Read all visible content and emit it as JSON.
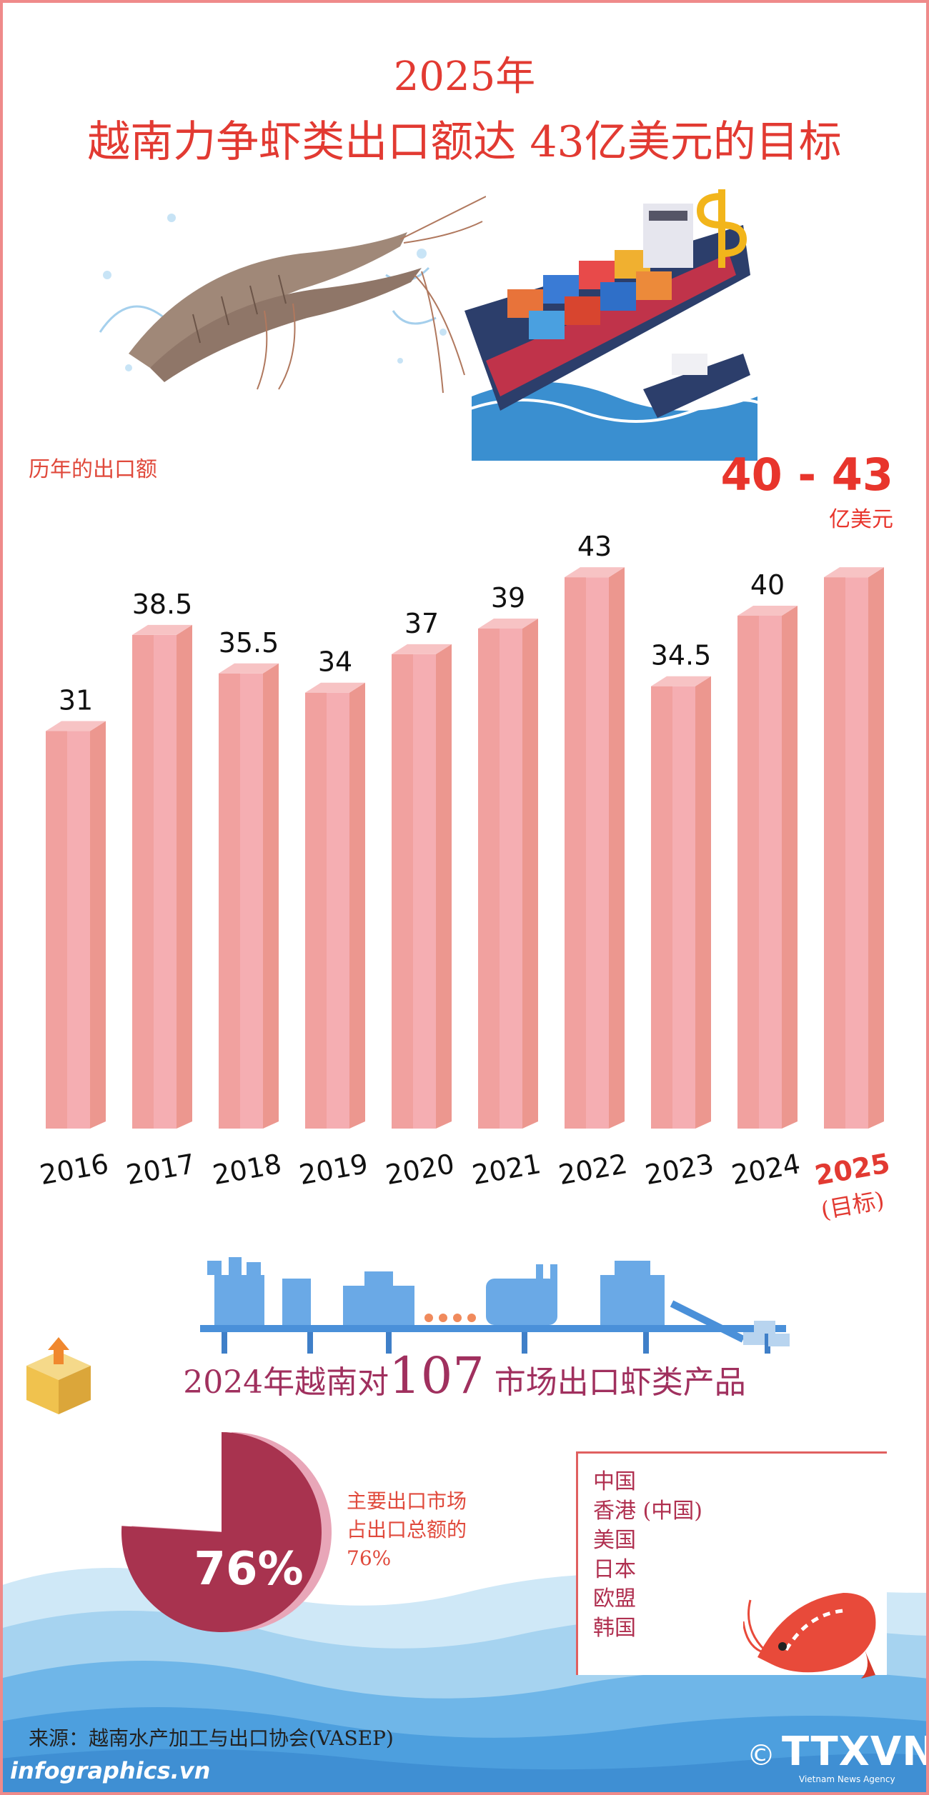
{
  "title": {
    "year": "2025年",
    "main": "越南力争虾类出口额达 43亿美元的目标"
  },
  "history_label": "历年的出口额",
  "target": {
    "range": "40 - 43",
    "unit": "亿美元"
  },
  "chart_data": {
    "type": "bar",
    "categories": [
      "2016",
      "2017",
      "2018",
      "2019",
      "2020",
      "2021",
      "2022",
      "2023",
      "2024",
      "2025"
    ],
    "category_sublabels": [
      "",
      "",
      "",
      "",
      "",
      "",
      "",
      "",
      "",
      "(目标)"
    ],
    "values": [
      31,
      38.5,
      35.5,
      34,
      37,
      39,
      43,
      34.5,
      40,
      43
    ],
    "value_labels": [
      "31",
      "38.5",
      "35.5",
      "34",
      "37",
      "39",
      "43",
      "34.5",
      "40",
      ""
    ],
    "highlight_index": 9,
    "unit": "亿美元",
    "colors": {
      "front": "#f5aeb2",
      "side": "#ec978f",
      "top": "#f7c3c4",
      "highlight": "#e23a32"
    }
  },
  "market": {
    "prefix": "2024年越南对",
    "count": "107",
    "suffix": " 市场出口虾类产品"
  },
  "share": {
    "percent_label": "76%",
    "percent": 76,
    "note": [
      "主要出口市场",
      "占出口总额的",
      "76%"
    ]
  },
  "markets": [
    "中国",
    "香港 (中国)",
    "美国",
    "日本",
    "欧盟",
    "韩国"
  ],
  "source": "来源：越南水产加工与出口协会(VASEP)",
  "footer": {
    "site": "infographics.vn",
    "logo": "TTXVN",
    "copyright": "©",
    "logo_sub": "Vietnam News Agency"
  }
}
